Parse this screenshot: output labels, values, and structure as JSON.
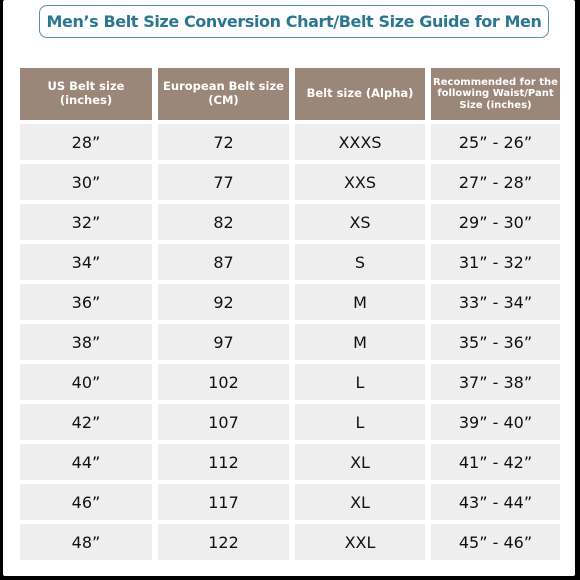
{
  "title": "Men’s Belt Size Conversion Chart/Belt Size Guide for Men",
  "headers": [
    "US Belt size (inches)",
    "European Belt size (CM)",
    "Belt size (Alpha)",
    "Recommended for the following Waist/Pant Size (inches)"
  ],
  "rows": [
    [
      "28”",
      "72",
      "XXXS",
      "25” - 26”"
    ],
    [
      "30”",
      "77",
      "XXS",
      "27” - 28”"
    ],
    [
      "32”",
      "82",
      "XS",
      "29” - 30”"
    ],
    [
      "34”",
      "87",
      "S",
      "31” - 32”"
    ],
    [
      "36”",
      "92",
      "M",
      "33” - 34”"
    ],
    [
      "38”",
      "97",
      "M",
      "35” - 36”"
    ],
    [
      "40”",
      "102",
      "L",
      "37” - 38”"
    ],
    [
      "42”",
      "107",
      "L",
      "39” - 40”"
    ],
    [
      "44”",
      "112",
      "XL",
      "41” - 42”"
    ],
    [
      "46”",
      "117",
      "XL",
      "43” - 44”"
    ],
    [
      "48”",
      "122",
      "XXL",
      "45” - 46”"
    ]
  ],
  "colors": {
    "header_bg": "#9b877a",
    "cell_bg": "#eeeeee",
    "title_text": "#2c7790",
    "title_border": "#5a8fa6"
  }
}
